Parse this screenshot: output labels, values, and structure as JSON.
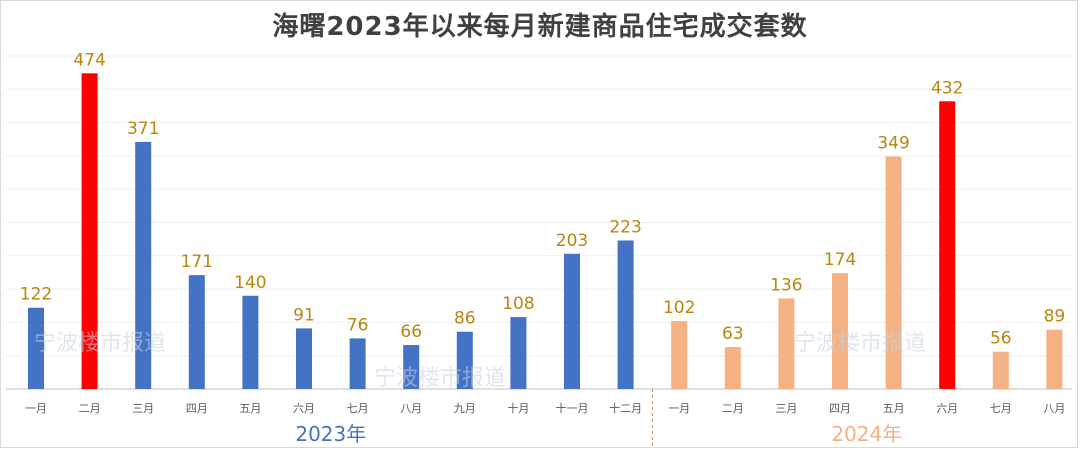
{
  "chart_data": {
    "type": "bar",
    "title": "海曙2023年以来每月新建商品住宅成交套数",
    "groups": [
      {
        "name": "2023年",
        "color": "#4472c4",
        "categories": [
          "一月",
          "二月",
          "三月",
          "四月",
          "五月",
          "六月",
          "七月",
          "八月",
          "九月",
          "十月",
          "十一月",
          "十二月"
        ],
        "values": [
          122,
          474,
          371,
          171,
          140,
          91,
          76,
          66,
          86,
          108,
          203,
          223
        ]
      },
      {
        "name": "2024年",
        "color": "#f4b183",
        "categories": [
          "一月",
          "二月",
          "三月",
          "四月",
          "五月",
          "六月",
          "七月",
          "八月"
        ],
        "values": [
          102,
          63,
          136,
          174,
          349,
          432,
          56,
          89
        ]
      }
    ],
    "highlight_color": "#ff0000",
    "highlighted": [
      {
        "group": 0,
        "category": "二月"
      },
      {
        "group": 1,
        "category": "六月"
      }
    ],
    "label_color": "#b8860b",
    "ylim": [
      0,
      500
    ],
    "grid": true
  },
  "watermark": "宁波楼市报道"
}
